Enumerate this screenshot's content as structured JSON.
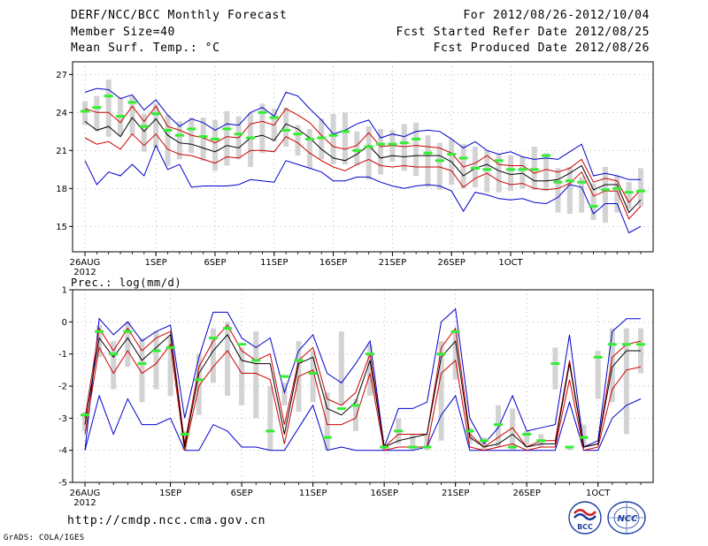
{
  "header": {
    "title": "DERF/NCC/BCC Monthly Forecast",
    "member_size": "Member Size=40",
    "variable": "Mean Surf. Temp.: °C",
    "period": "For 2012/08/26-2012/10/04",
    "started": "Fcst Started Refer Date 2012/08/25",
    "produced": "Fcst Produced Date 2012/08/26"
  },
  "footer": {
    "url": "http://cmdp.ncc.cma.gov.cn",
    "grads": "GrADS: COLA/IGES",
    "logo_left_text": "BCC",
    "logo_right_text": "NCC"
  },
  "colors": {
    "ensemble_mean": "#000000",
    "spread": "#cc0000",
    "envelope": "#0000cc",
    "median": "#33ee33",
    "box": "#d3d3d3"
  },
  "chart_data": [
    {
      "type": "line",
      "title": "Mean Surf. Temp.: °C",
      "ylim": [
        13,
        28
      ],
      "yticks": [
        15,
        18,
        21,
        24,
        27
      ],
      "xticks": [
        {
          "day": 0,
          "label": "26AUG",
          "sub": "2012"
        },
        {
          "day": 6,
          "label": "1SEP"
        },
        {
          "day": 11,
          "label": "6SEP"
        },
        {
          "day": 16,
          "label": "11SEP"
        },
        {
          "day": 21,
          "label": "16SEP"
        },
        {
          "day": 26,
          "label": "21SEP"
        },
        {
          "day": 31,
          "label": "26SEP"
        },
        {
          "day": 36,
          "label": "1OCT"
        }
      ],
      "series": [
        {
          "name": "max",
          "values": [
            25.6,
            25.9,
            25.8,
            25.1,
            25.4,
            24.2,
            25.0,
            23.8,
            22.9,
            23.5,
            23.2,
            22.6,
            23.1,
            23.0,
            24.0,
            24.4,
            23.7,
            25.6,
            25.3,
            24.3,
            23.4,
            22.3,
            22.6,
            23.1,
            23.4,
            22.0,
            22.3,
            22.1,
            22.5,
            22.6,
            22.5,
            21.9,
            21.2,
            21.7,
            21.0,
            20.7,
            20.9,
            20.5,
            20.3,
            20.4,
            20.3,
            20.9,
            21.5,
            19.0,
            19.2,
            19.0,
            18.7,
            18.7
          ]
        },
        {
          "name": "upper",
          "values": [
            24.3,
            24.0,
            24.0,
            23.2,
            24.5,
            23.3,
            24.5,
            22.9,
            22.6,
            22.2,
            22.0,
            21.6,
            22.1,
            22.0,
            23.1,
            23.3,
            23.0,
            24.3,
            23.8,
            23.2,
            22.2,
            21.3,
            21.1,
            21.4,
            22.4,
            21.3,
            21.4,
            21.3,
            21.4,
            21.3,
            21.2,
            20.8,
            19.7,
            20.0,
            20.6,
            19.9,
            19.8,
            19.8,
            19.2,
            19.5,
            19.3,
            19.6,
            20.3,
            18.5,
            18.8,
            18.6,
            16.9,
            17.9
          ]
        },
        {
          "name": "mean",
          "values": [
            23.3,
            22.6,
            22.9,
            22.1,
            23.6,
            22.5,
            23.5,
            22.2,
            21.6,
            21.5,
            21.2,
            20.9,
            21.4,
            21.2,
            22.0,
            22.2,
            21.8,
            23.1,
            22.7,
            22.0,
            21.1,
            20.4,
            20.2,
            20.7,
            21.4,
            20.4,
            20.6,
            20.5,
            20.6,
            20.6,
            20.6,
            20.1,
            19.0,
            19.6,
            19.9,
            19.4,
            19.1,
            19.2,
            18.6,
            18.6,
            18.7,
            19.2,
            19.8,
            17.9,
            18.3,
            18.3,
            16.1,
            17.1
          ]
        },
        {
          "name": "lower",
          "values": [
            22.0,
            21.5,
            21.7,
            21.1,
            22.3,
            21.4,
            22.3,
            21.1,
            20.7,
            20.6,
            20.3,
            20.0,
            20.5,
            20.4,
            21.0,
            21.0,
            20.9,
            22.1,
            21.6,
            20.8,
            20.2,
            19.7,
            19.4,
            19.9,
            20.3,
            19.8,
            19.7,
            19.8,
            19.7,
            19.7,
            19.7,
            19.4,
            18.1,
            18.8,
            19.2,
            18.6,
            18.3,
            18.4,
            18.0,
            17.9,
            18.0,
            18.4,
            19.3,
            17.4,
            17.8,
            17.8,
            15.6,
            16.6
          ]
        },
        {
          "name": "min",
          "values": [
            20.2,
            18.3,
            19.3,
            19.0,
            19.9,
            19.0,
            21.4,
            19.5,
            19.9,
            18.1,
            18.2,
            18.2,
            18.2,
            18.3,
            18.7,
            18.6,
            18.5,
            20.2,
            19.9,
            19.6,
            19.3,
            18.6,
            18.6,
            18.9,
            18.9,
            18.5,
            18.2,
            18.0,
            18.2,
            18.3,
            18.2,
            17.8,
            16.2,
            17.7,
            17.5,
            17.2,
            17.1,
            17.2,
            16.9,
            16.8,
            17.3,
            18.3,
            18.1,
            16.0,
            16.8,
            16.8,
            14.5,
            15.0
          ]
        },
        {
          "name": "median",
          "values": [
            24.1,
            24.4,
            25.3,
            23.7,
            24.8,
            22.9,
            23.9,
            22.6,
            22.2,
            22.7,
            22.1,
            21.9,
            22.7,
            22.3,
            22.0,
            24.0,
            23.6,
            22.6,
            22.3,
            21.9,
            22.0,
            22.2,
            22.5,
            21.0,
            21.3,
            21.5,
            21.5,
            21.6,
            21.9,
            20.8,
            20.2,
            20.7,
            20.4,
            19.6,
            19.5,
            20.2,
            19.5,
            19.5,
            19.5,
            20.6,
            18.5,
            18.6,
            18.5,
            16.6,
            17.9,
            18.0,
            17.7,
            17.8
          ]
        },
        {
          "name": "box_high",
          "values": [
            24.9,
            25.3,
            26.6,
            25.2,
            25.3,
            23.9,
            24.7,
            23.8,
            23.3,
            23.6,
            23.6,
            23.4,
            24.1,
            23.7,
            24.0,
            24.7,
            24.3,
            24.4,
            23.0,
            22.7,
            23.5,
            23.9,
            24.0,
            22.5,
            22.9,
            22.7,
            22.6,
            23.1,
            23.2,
            22.2,
            21.6,
            21.9,
            21.5,
            21.3,
            21.0,
            20.7,
            20.6,
            20.5,
            21.3,
            20.8,
            19.6,
            19.7,
            18.9,
            18.4,
            19.7,
            19.0,
            18.5,
            19.6
          ]
        },
        {
          "name": "box_low",
          "values": [
            23.0,
            22.5,
            22.1,
            22.2,
            22.2,
            20.9,
            21.2,
            19.8,
            20.3,
            20.8,
            20.2,
            19.4,
            19.8,
            20.3,
            19.7,
            20.8,
            21.7,
            21.3,
            20.6,
            19.6,
            20.3,
            19.9,
            19.9,
            19.8,
            18.7,
            19.1,
            20.1,
            19.4,
            19.0,
            18.1,
            17.9,
            18.3,
            18.0,
            18.1,
            17.7,
            17.7,
            17.8,
            18.0,
            17.9,
            17.8,
            16.1,
            16.0,
            16.1,
            15.5,
            15.3,
            16.1,
            16.4,
            16.6
          ]
        }
      ]
    },
    {
      "type": "line",
      "title": "Prec.: log(mm/d)",
      "ylim": [
        -5,
        1
      ],
      "yticks": [
        -5,
        -4,
        -3,
        -2,
        -1,
        0,
        1
      ],
      "xticks": [
        {
          "day": 0,
          "label": "26AUG",
          "sub": "2012"
        },
        {
          "day": 6,
          "label": "1SEP"
        },
        {
          "day": 11,
          "label": "6SEP"
        },
        {
          "day": 16,
          "label": "11SEP"
        },
        {
          "day": 21,
          "label": "16SEP"
        },
        {
          "day": 26,
          "label": "21SEP"
        },
        {
          "day": 31,
          "label": "26SEP"
        },
        {
          "day": 36,
          "label": "1OCT"
        }
      ],
      "series": [
        {
          "name": "max",
          "values": [
            -4.0,
            0.1,
            -0.4,
            0.0,
            -0.6,
            -0.3,
            -0.1,
            -3.0,
            -1.1,
            0.3,
            0.3,
            -0.5,
            -0.8,
            -0.5,
            -2.2,
            -0.9,
            -0.4,
            -1.6,
            -1.9,
            -1.3,
            -0.6,
            -3.9,
            -2.7,
            -2.7,
            -2.5,
            0.0,
            0.4,
            -3.0,
            -3.8,
            -3.3,
            -2.3,
            -3.4,
            -3.3,
            -3.2,
            -0.4,
            -3.9,
            -3.7,
            -0.3,
            0.1,
            0.1
          ]
        },
        {
          "name": "upper",
          "values": [
            -3.0,
            -0.2,
            -0.9,
            -0.2,
            -0.9,
            -0.5,
            -0.3,
            -3.8,
            -1.4,
            -0.6,
            -0.1,
            -0.9,
            -1.2,
            -1.0,
            -3.2,
            -1.2,
            -0.8,
            -2.4,
            -2.6,
            -2.2,
            -1.0,
            -3.9,
            -3.5,
            -3.5,
            -3.5,
            -0.8,
            -0.2,
            -3.5,
            -3.9,
            -3.6,
            -3.3,
            -3.9,
            -3.7,
            -3.7,
            -1.2,
            -3.9,
            -3.8,
            -1.1,
            -0.7,
            -0.6
          ]
        },
        {
          "name": "mean",
          "values": [
            -3.2,
            -0.5,
            -1.1,
            -0.5,
            -1.2,
            -0.8,
            -0.4,
            -3.9,
            -1.6,
            -0.9,
            -0.4,
            -1.2,
            -1.3,
            -1.3,
            -3.5,
            -1.3,
            -1.1,
            -2.7,
            -2.9,
            -2.5,
            -1.2,
            -3.9,
            -3.7,
            -3.6,
            -3.5,
            -1.1,
            -0.6,
            -3.6,
            -3.9,
            -3.8,
            -3.5,
            -3.9,
            -3.8,
            -3.8,
            -1.3,
            -3.9,
            -3.8,
            -1.4,
            -0.9,
            -0.9
          ]
        },
        {
          "name": "lower",
          "values": [
            -3.5,
            -0.8,
            -1.6,
            -0.9,
            -1.6,
            -1.3,
            -0.7,
            -4.0,
            -2.0,
            -1.4,
            -0.9,
            -1.6,
            -1.6,
            -1.8,
            -3.8,
            -1.7,
            -1.5,
            -3.2,
            -3.2,
            -3.0,
            -1.6,
            -4.0,
            -3.9,
            -3.9,
            -3.9,
            -1.6,
            -1.2,
            -3.9,
            -4.0,
            -3.9,
            -3.8,
            -4.0,
            -3.9,
            -3.9,
            -1.8,
            -4.0,
            -3.9,
            -2.1,
            -1.5,
            -1.4
          ]
        },
        {
          "name": "min",
          "values": [
            -4.0,
            -2.3,
            -3.5,
            -2.4,
            -3.2,
            -3.2,
            -3.0,
            -4.0,
            -4.0,
            -3.2,
            -3.4,
            -3.9,
            -3.9,
            -4.0,
            -4.0,
            -3.3,
            -2.6,
            -4.0,
            -3.9,
            -4.0,
            -4.0,
            -4.0,
            -4.0,
            -4.0,
            -3.9,
            -2.9,
            -2.3,
            -4.0,
            -4.0,
            -4.0,
            -4.0,
            -4.0,
            -4.0,
            -4.0,
            -2.5,
            -4.0,
            -4.0,
            -3.0,
            -2.6,
            -2.4
          ]
        },
        {
          "name": "median",
          "values": [
            -2.9,
            -0.3,
            -1.0,
            -0.3,
            -1.3,
            -0.9,
            -0.8,
            -3.5,
            -1.8,
            -0.5,
            -0.2,
            -0.7,
            -1.2,
            -3.4,
            -1.7,
            -1.2,
            -1.6,
            -3.6,
            -2.7,
            -2.6,
            -1.0,
            -3.9,
            -3.4,
            -3.9,
            -3.9,
            -1.0,
            -0.3,
            -3.4,
            -3.7,
            -3.2,
            -3.9,
            -3.5,
            -3.7,
            -1.3,
            -3.9,
            -3.6,
            -1.1,
            -0.7,
            -0.7,
            -0.7
          ]
        },
        {
          "name": "box_high",
          "values": [
            -2.8,
            -0.1,
            -0.6,
            0.0,
            -0.5,
            -0.3,
            -0.5,
            -3.4,
            -1.0,
            -0.2,
            0.0,
            -0.8,
            -0.3,
            -2.0,
            -1.9,
            -0.6,
            -0.9,
            -2.2,
            -0.3,
            -2.4,
            -0.7,
            -3.8,
            -3.0,
            -3.5,
            -3.5,
            -0.6,
            -0.3,
            -3.3,
            -3.6,
            -2.6,
            -2.7,
            -3.4,
            -3.5,
            -0.8,
            -3.9,
            -3.2,
            -0.9,
            -0.2,
            -0.2,
            -0.2
          ]
        },
        {
          "name": "box_low",
          "values": [
            -3.4,
            -1.1,
            -2.1,
            -1.4,
            -2.5,
            -2.1,
            -2.3,
            -4.0,
            -2.9,
            -1.9,
            -2.3,
            -2.6,
            -3.0,
            -4.0,
            -2.6,
            -2.8,
            -2.5,
            -4.0,
            -2.6,
            -3.4,
            -2.3,
            -4.0,
            -3.8,
            -4.0,
            -4.0,
            -3.7,
            -1.8,
            -3.8,
            -4.0,
            -3.9,
            -4.0,
            -3.9,
            -3.9,
            -2.1,
            -4.0,
            -3.9,
            -2.4,
            -2.5,
            -3.5,
            -1.6
          ]
        }
      ]
    }
  ]
}
